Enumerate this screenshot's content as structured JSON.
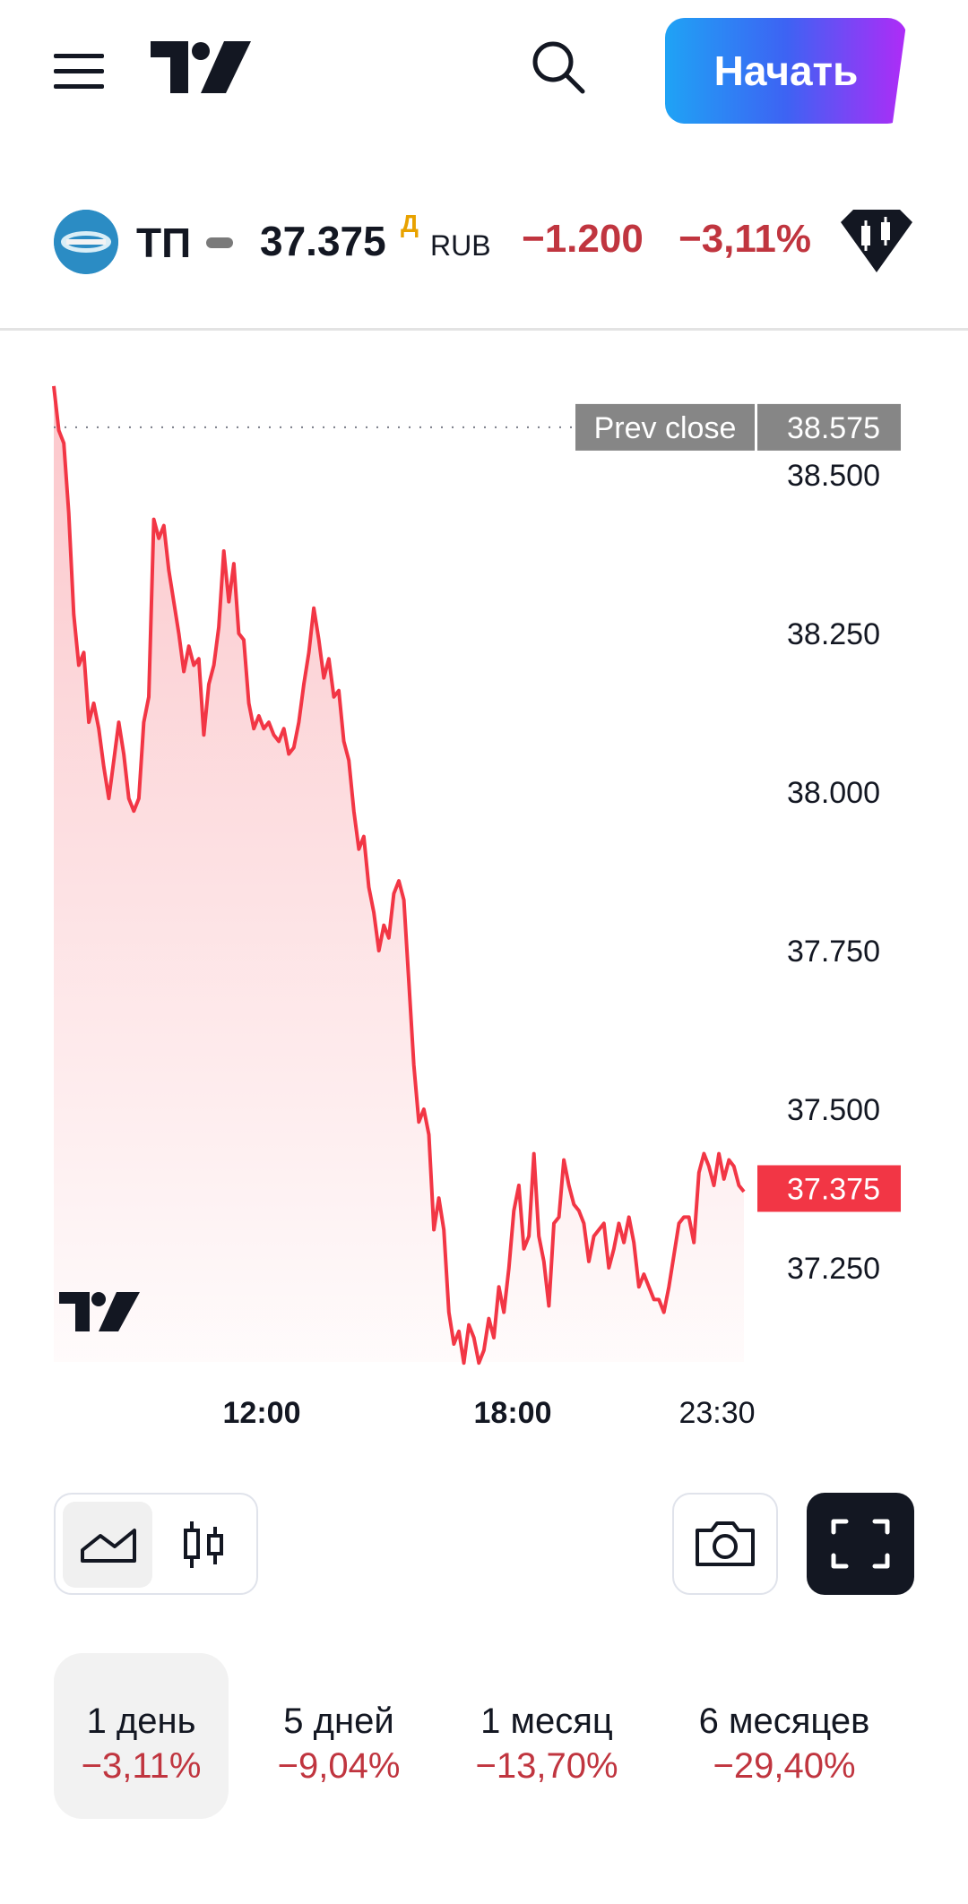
{
  "header": {
    "start_label": "Начать"
  },
  "quote": {
    "ticker": "ТП",
    "price": "37.375",
    "price_mark": "Д",
    "currency": "RUB",
    "change": "−1.200",
    "change_percent": "−3,11%"
  },
  "colors": {
    "line": "#f23645",
    "negative": "#c0353f",
    "accent_start": "#1fa3f5",
    "accent_end": "#b02bf7"
  },
  "chart_data": {
    "type": "area",
    "title": "",
    "prev_close": {
      "label": "Prev close",
      "value": 38.575
    },
    "last_price": 37.375,
    "ylim": [
      37.08,
      38.72
    ],
    "y_ticks": [
      "38.500",
      "38.250",
      "38.000",
      "37.750",
      "37.500",
      "37.250"
    ],
    "x_ticks": [
      "12:00",
      "18:00",
      "23:30"
    ],
    "series": [
      {
        "values": [
          38.64,
          38.57,
          38.55,
          38.44,
          38.28,
          38.2,
          38.22,
          38.11,
          38.14,
          38.1,
          38.04,
          37.99,
          38.05,
          38.11,
          38.06,
          37.99,
          37.97,
          37.99,
          38.11,
          38.15,
          38.43,
          38.4,
          38.42,
          38.35,
          38.3,
          38.25,
          38.19,
          38.23,
          38.2,
          38.21,
          38.09,
          38.17,
          38.2,
          38.26,
          38.38,
          38.3,
          38.36,
          38.25,
          38.24,
          38.14,
          38.1,
          38.12,
          38.1,
          38.11,
          38.09,
          38.08,
          38.1,
          38.06,
          38.07,
          38.11,
          38.17,
          38.22,
          38.29,
          38.24,
          38.18,
          38.21,
          38.15,
          38.16,
          38.08,
          38.05,
          37.97,
          37.91,
          37.93,
          37.85,
          37.81,
          37.75,
          37.79,
          37.77,
          37.84,
          37.86,
          37.83,
          37.7,
          37.57,
          37.48,
          37.5,
          37.46,
          37.31,
          37.36,
          37.31,
          37.18,
          37.13,
          37.15,
          37.1,
          37.16,
          37.14,
          37.1,
          37.12,
          37.17,
          37.14,
          37.22,
          37.18,
          37.25,
          37.34,
          37.38,
          37.28,
          37.3,
          37.43,
          37.3,
          37.26,
          37.19,
          37.32,
          37.33,
          37.42,
          37.38,
          37.35,
          37.34,
          37.32,
          37.26,
          37.3,
          37.31,
          37.32,
          37.25,
          37.28,
          37.32,
          37.29,
          37.33,
          37.29,
          37.22,
          37.24,
          37.22,
          37.2,
          37.2,
          37.18,
          37.22,
          37.27,
          37.32,
          37.33,
          37.33,
          37.29,
          37.4,
          37.43,
          37.41,
          37.38,
          37.43,
          37.39,
          37.42,
          37.41,
          37.38,
          37.37
        ]
      }
    ],
    "grid": false
  },
  "controls": {
    "style_line_icon": "area-chart-icon",
    "style_candle_icon": "candlestick-icon",
    "camera_icon": "camera-icon",
    "fullscreen_icon": "fullscreen-icon"
  },
  "periods": [
    {
      "label": "1 день",
      "change": "−3,11%",
      "active": true
    },
    {
      "label": "5 дней",
      "change": "−9,04%",
      "active": false
    },
    {
      "label": "1 месяц",
      "change": "−13,70%",
      "active": false
    },
    {
      "label": "6 месяцев",
      "change": "−29,40%",
      "active": false
    }
  ]
}
